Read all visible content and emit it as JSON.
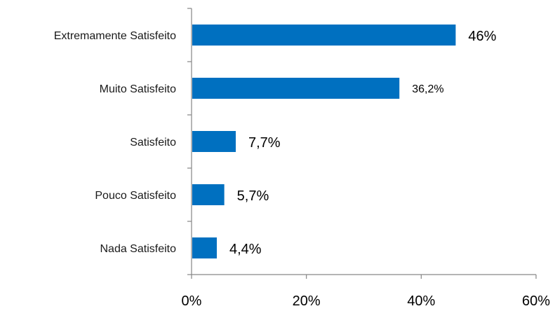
{
  "chart_data": {
    "type": "bar",
    "orientation": "horizontal",
    "categories": [
      "Extremamente Satisfeito",
      "Muito Satisfeito",
      "Satisfeito",
      "Pouco Satisfeito",
      "Nada Satisfeito"
    ],
    "values": [
      46,
      36.2,
      7.7,
      5.7,
      4.4
    ],
    "value_labels": [
      "46%",
      "36,2%",
      "7,7%",
      "5,7%",
      "4,4%"
    ],
    "x_ticks": [
      "0%",
      "20%",
      "40%",
      "60%"
    ],
    "xlim": [
      0,
      60
    ],
    "grid": false,
    "legend": "none",
    "bar_color": "#0070C0",
    "axis_color": "#868686"
  }
}
